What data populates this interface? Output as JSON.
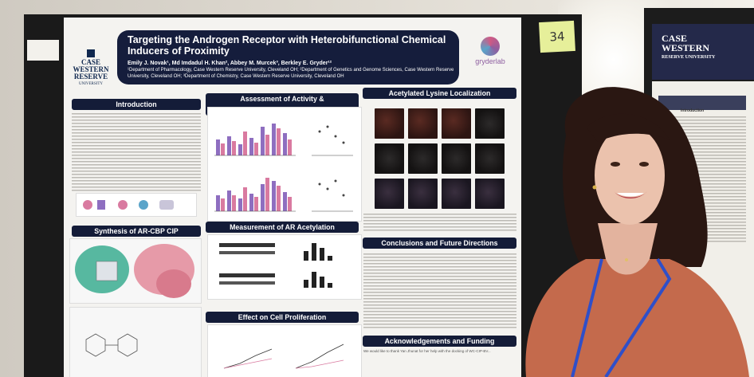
{
  "poster": {
    "title": "Targeting the Androgen Receptor with Heterobifunctional Chemical Inducers of Proximity",
    "authors": "Emily J. Novak¹, Md Imdadul H. Khan², Abbey M. Murcek³, Berkley E. Gryder¹²",
    "affiliations": "¹Department of Pharmacology, Case Western Reserve University, Cleveland OH; ²Department of Genetics and Genome Sciences, Case Western Reserve University, Cleveland OH; ³Department of Chemistry, Case Western Reserve University, Cleveland OH",
    "institution_logo": [
      "CASE",
      "WESTERN",
      "RESERVE",
      "UNIVERSITY"
    ],
    "lab_logo": "gryderlab",
    "sections": {
      "introduction": "Introduction",
      "synthesis": "Synthesis of AR-CBP CIP",
      "assessment": "Assessment of Activity & Heterobifunctionality",
      "measurement": "Measurement of AR Acetylation",
      "proliferation": "Effect on Cell Proliferation",
      "acetylated": "Acetylated Lysine Localization",
      "conclusions": "Conclusions and Future Directions",
      "acknowledgements": "Acknowledgements and Funding"
    },
    "ack_snippet": "We would like to thank Yan Jhunat for her help with the docking of WC-CIP-BV..."
  },
  "sticky_note": "34",
  "background_poster": {
    "logo": [
      "CASE",
      "WESTERN",
      "RESERVE",
      "UNIVERSITY"
    ],
    "section": "Introduction"
  },
  "colors": {
    "header_navy": "#151d3c",
    "bar_pink": "#d97aa0",
    "bar_purple": "#8e6ec0",
    "lanyard_blue": "#2f4fc9",
    "sweater": "#c46a4c"
  }
}
